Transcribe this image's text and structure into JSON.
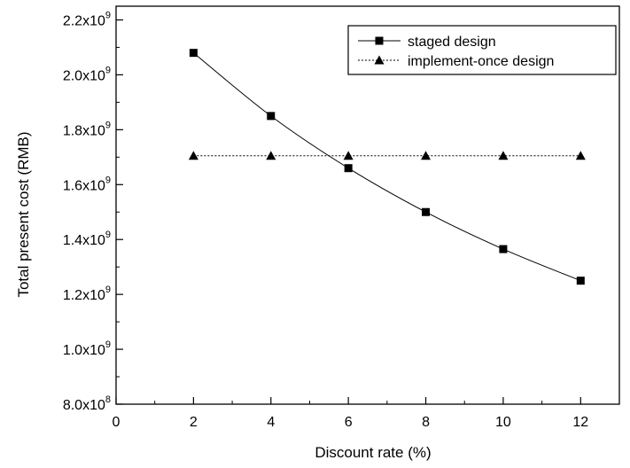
{
  "chart_data": {
    "type": "line",
    "title": "",
    "xlabel": "Discount rate (%)",
    "ylabel": "Total present cost (RMB)",
    "xlim": [
      0,
      13
    ],
    "ylim": [
      800000000,
      2250000000
    ],
    "x_ticks": [
      0,
      2,
      4,
      6,
      8,
      10,
      12
    ],
    "y_ticks": [
      {
        "value": 800000000,
        "mantissa": "8.0x10",
        "exp": "8"
      },
      {
        "value": 1000000000,
        "mantissa": "1.0x10",
        "exp": "9"
      },
      {
        "value": 1200000000,
        "mantissa": "1.2x10",
        "exp": "9"
      },
      {
        "value": 1400000000,
        "mantissa": "1.4x10",
        "exp": "9"
      },
      {
        "value": 1600000000,
        "mantissa": "1.6x10",
        "exp": "9"
      },
      {
        "value": 1800000000,
        "mantissa": "1.8x10",
        "exp": "9"
      },
      {
        "value": 2000000000,
        "mantissa": "2.0x10",
        "exp": "9"
      },
      {
        "value": 2200000000,
        "mantissa": "2.2x10",
        "exp": "9"
      }
    ],
    "grid": false,
    "legend_position": "top-right",
    "series": [
      {
        "name": "staged design",
        "marker": "square",
        "line_style": "solid",
        "color": "#000000",
        "x": [
          2,
          4,
          6,
          8,
          10,
          12
        ],
        "y": [
          2080000000,
          1850000000,
          1660000000,
          1500000000,
          1365000000,
          1250000000
        ]
      },
      {
        "name": "implement-once design",
        "marker": "triangle",
        "line_style": "dotted",
        "color": "#000000",
        "x": [
          2,
          4,
          6,
          8,
          10,
          12
        ],
        "y": [
          1705000000,
          1705000000,
          1705000000,
          1705000000,
          1705000000,
          1705000000
        ]
      }
    ]
  }
}
